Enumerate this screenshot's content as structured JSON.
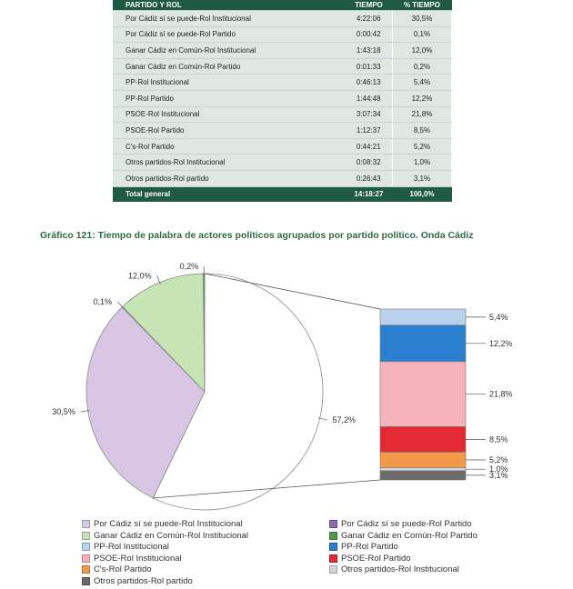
{
  "table": {
    "headers": [
      "PARTIDO Y ROL",
      "TIEMPO",
      "% TIEMPO"
    ],
    "rows": [
      [
        "Por Cádiz sí se puede-Rol Institucional",
        "4:22:06",
        "30,5%"
      ],
      [
        "Por Cádiz sí se puede-Rol Partido",
        "0:00:42",
        "0,1%"
      ],
      [
        "Ganar Cádiz en Común-Rol Institucional",
        "1:43:18",
        "12,0%"
      ],
      [
        "Ganar Cádiz en Común-Rol Partido",
        "0:01:33",
        "0,2%"
      ],
      [
        "PP-Rol Institucional",
        "0:46:13",
        "5,4%"
      ],
      [
        "PP-Rol Partido",
        "1:44:48",
        "12,2%"
      ],
      [
        "PSOE-Rol Institucional",
        "3:07:34",
        "21,8%"
      ],
      [
        "PSOE-Rol Partido",
        "1:12:37",
        "8,5%"
      ],
      [
        "C's-Rol Partido",
        "0:44:21",
        "5,2%"
      ],
      [
        "Otros partidos-Rol Institucional",
        "0:08:32",
        "1,0%"
      ],
      [
        "Otros partidos-Rol partido",
        "0:26:43",
        "3,1%"
      ]
    ],
    "total": [
      "Total general",
      "14:18:27",
      "100,0%"
    ]
  },
  "chart_title": "Gráfico 121: Tiempo de palabra de actores políticos agrupados por partido político. Onda Cádiz",
  "chart_data": {
    "type": "pie",
    "subtype": "pie-of-pie (bar of pie)",
    "pie_slices": [
      {
        "name": "Por Cádiz sí se puede-Rol Institucional",
        "value": 30.5,
        "label": "30,5%",
        "color": "#d8c6e4"
      },
      {
        "name": "Por Cádiz sí se puede-Rol Partido",
        "value": 0.1,
        "label": "0,1%",
        "color": "#8c6bb1"
      },
      {
        "name": "Ganar Cádiz en Común-Rol Institucional",
        "value": 12.0,
        "label": "12,0%",
        "color": "#c6e4b4"
      },
      {
        "name": "Ganar Cádiz en Común-Rol Partido",
        "value": 0.2,
        "label": "0,2%",
        "color": "#4e9a4a"
      },
      {
        "name": "Other (stacked bar)",
        "value": 57.2,
        "label": "57,2%",
        "color": "#ffffff"
      }
    ],
    "bar_segments": [
      {
        "name": "PP-Rol Institucional",
        "value": 5.4,
        "label": "5,4%",
        "color": "#b9d3ee"
      },
      {
        "name": "PP-Rol Partido",
        "value": 12.2,
        "label": "12,2%",
        "color": "#2a7fcf"
      },
      {
        "name": "PSOE-Rol Institucional",
        "value": 21.8,
        "label": "21,8%",
        "color": "#f6b3bb"
      },
      {
        "name": "PSOE-Rol Partido",
        "value": 8.5,
        "label": "8,5%",
        "color": "#e32a33"
      },
      {
        "name": "C's-Rol Partido",
        "value": 5.2,
        "label": "5,2%",
        "color": "#f39a4a"
      },
      {
        "name": "Otros partidos-Rol Institucional",
        "value": 1.0,
        "label": "1,0%",
        "color": "#d6d6d6"
      },
      {
        "name": "Otros partidos-Rol partido",
        "value": 3.1,
        "label": "3,1%",
        "color": "#6b6b6b"
      }
    ],
    "legend": [
      {
        "label": "Por Cádiz sí se puede-Rol Institucional",
        "color": "#d8c6e4"
      },
      {
        "label": "Por Cádiz sí se puede-Rol Partido",
        "color": "#8c6bb1"
      },
      {
        "label": "Ganar Cádiz en Común-Rol Institucional",
        "color": "#c6e4b4"
      },
      {
        "label": "Ganar Cádiz en Común-Rol Partido",
        "color": "#4e9a4a"
      },
      {
        "label": "PP-Rol Institucional",
        "color": "#b9d3ee"
      },
      {
        "label": "PP-Rol Partido",
        "color": "#2a7fcf"
      },
      {
        "label": "PSOE-Rol Institucional",
        "color": "#f6b3bb"
      },
      {
        "label": "PSOE-Rol Partido",
        "color": "#e32a33"
      },
      {
        "label": "C's-Rol Partido",
        "color": "#f39a4a"
      },
      {
        "label": "Otros partidos-Rol Institucional",
        "color": "#d6d6d6"
      },
      {
        "label": "Otros partidos-Rol partido",
        "color": "#6b6b6b"
      }
    ],
    "legend_placement": "bottom"
  }
}
